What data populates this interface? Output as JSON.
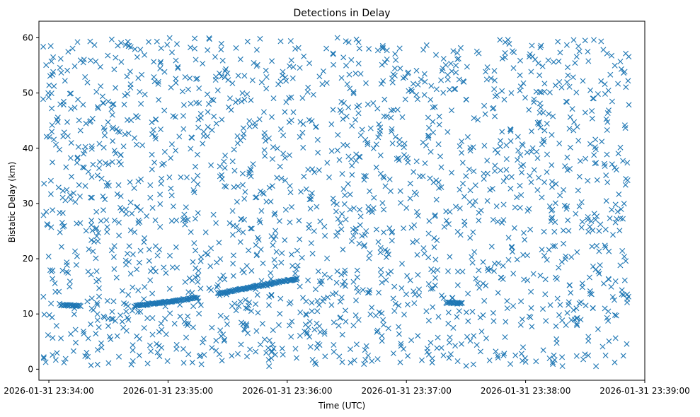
{
  "chart_data": {
    "type": "scatter",
    "title": "Detections in Delay",
    "xlabel": "Time (UTC)",
    "ylabel": "Bistatic Delay (km)",
    "marker": "x",
    "colors": {
      "marker": "#1f77b4"
    },
    "grid": false,
    "legend": "none",
    "x_axis": {
      "type": "time",
      "range": [
        "2026-01-31 23:33:55",
        "2026-01-31 23:39:00"
      ],
      "ticks": [
        "2026-01-31 23:34:00",
        "2026-01-31 23:35:00",
        "2026-01-31 23:36:00",
        "2026-01-31 23:37:00",
        "2026-01-31 23:38:00",
        "2026-01-31 23:39:00"
      ]
    },
    "y_axis": {
      "range": [
        -2,
        63
      ],
      "ticks": [
        0,
        10,
        20,
        30,
        40,
        50,
        60
      ]
    },
    "data_x_range": [
      "2026-01-31 23:33:57",
      "2026-01-31 23:38:52"
    ],
    "data_y_range": [
      0.5,
      60
    ],
    "tracks": [
      {
        "x_start": "2026-01-31 23:34:06",
        "x_end": "2026-01-31 23:34:16",
        "y_start": 11.6,
        "y_end": 11.5
      },
      {
        "x_start": "2026-01-31 23:34:43",
        "x_end": "2026-01-31 23:35:15",
        "y_start": 11.4,
        "y_end": 13.0
      },
      {
        "x_start": "2026-01-31 23:35:25",
        "x_end": "2026-01-31 23:36:05",
        "y_start": 13.7,
        "y_end": 16.4
      },
      {
        "x_start": "2026-01-31 23:37:20",
        "x_end": "2026-01-31 23:37:28",
        "y_start": 12.0,
        "y_end": 12.0
      }
    ]
  }
}
